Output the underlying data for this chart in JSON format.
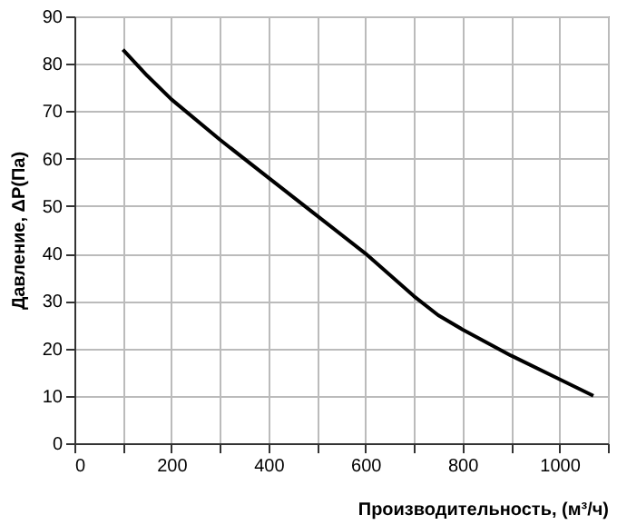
{
  "chart_data": {
    "type": "line",
    "xlabel": "Производительность, (м³/ч)",
    "ylabel": "Давление, ΔP(Па)",
    "x": [
      100,
      150,
      200,
      300,
      400,
      500,
      600,
      650,
      700,
      750,
      800,
      900,
      1000,
      1070
    ],
    "series": [
      {
        "color": "#000000",
        "values": [
          83,
          77.5,
          72.5,
          64,
          56,
          48,
          40,
          35.5,
          31,
          27,
          24,
          18.5,
          13.5,
          10
        ]
      }
    ],
    "xlim": [
      0,
      1100
    ],
    "ylim": [
      0,
      90
    ],
    "xticks": [
      0,
      {
        "value": 100,
        "label": null
      },
      200,
      {
        "value": 300,
        "label": null
      },
      400,
      {
        "value": 500,
        "label": null
      },
      600,
      {
        "value": 700,
        "label": null
      },
      800,
      {
        "value": 900,
        "label": null
      },
      1000,
      {
        "value": 1100,
        "label": null
      }
    ],
    "yticks": [
      0,
      10,
      20,
      30,
      40,
      50,
      60,
      70,
      80,
      90
    ],
    "grid": true,
    "marker": "none",
    "line_style": "solid"
  }
}
